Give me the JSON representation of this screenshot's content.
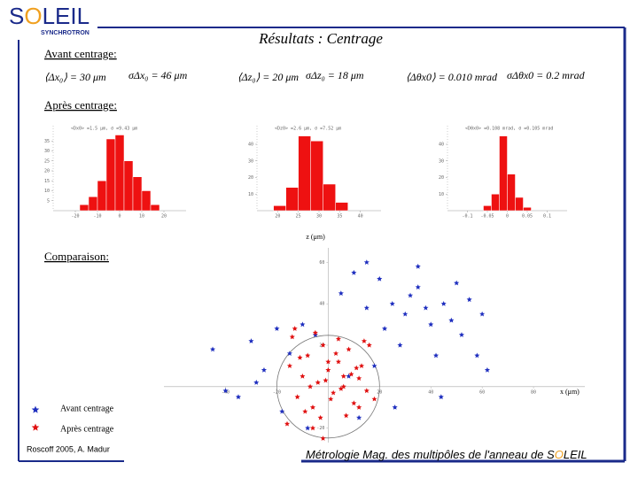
{
  "header": {
    "logo_s": "S",
    "logo_o": "O",
    "logo_rest": "LEIL",
    "logo_sub": "SYNCHROTRON",
    "title": "Résultats : Centrage"
  },
  "sections": {
    "before": "Avant centrage:",
    "after": "Après centrage:",
    "comparison": "Comparaison:"
  },
  "formulas": [
    "⟨Δx₀⟩ = 30 μm",
    "σΔx₀ = 46 μm",
    "⟨Δz₀⟩ = 20 μm",
    "σΔz₀ = 18 μm",
    "⟨Δθx0⟩ = 0.010 mrad",
    "σΔθx0 = 0.2 mrad"
  ],
  "histograms": [
    {
      "type": "histogram",
      "stats": "<Dx0> =1.5 μm, σ =9.43 μm",
      "bins": [
        -18,
        -14,
        -10,
        -6,
        -2,
        2,
        6,
        10,
        14,
        18
      ],
      "counts": [
        3,
        7,
        15,
        36,
        38,
        25,
        17,
        10,
        3
      ],
      "xlim": [
        -30,
        30
      ],
      "xticks": [
        -20,
        -10,
        0,
        10,
        20
      ],
      "ylim": [
        0,
        40
      ],
      "yticks": [
        5,
        10,
        15,
        20,
        25,
        30,
        35
      ]
    },
    {
      "type": "histogram",
      "stats": "<Dz0> =2.6 μm, σ =7.52 μm",
      "bins": [
        19,
        22,
        25,
        28,
        31,
        34,
        37
      ],
      "counts": [
        3,
        14,
        45,
        42,
        16,
        5
      ],
      "xlim": [
        15,
        45
      ],
      "xticks": [
        20,
        25,
        30,
        35,
        40
      ],
      "ylim": [
        0,
        48
      ],
      "yticks": [
        10,
        20,
        30,
        40
      ]
    },
    {
      "type": "histogram",
      "stats": "<Dθx0> =0.108 mrad, σ =0.105 mrad",
      "bins": [
        -0.06,
        -0.04,
        -0.02,
        0,
        0.02,
        0.04,
        0.06
      ],
      "counts": [
        3,
        10,
        45,
        22,
        8,
        2
      ],
      "xlim": [
        -0.15,
        0.15
      ],
      "xticks": [
        -0.1,
        -0.05,
        0,
        0.05,
        0.1
      ],
      "ylim": [
        0,
        48
      ],
      "yticks": [
        10,
        20,
        30,
        40
      ]
    }
  ],
  "scatter": {
    "type": "scatter",
    "xlabel": "x (μm)",
    "ylabel": "z (μm)",
    "xlim": [
      -64,
      100
    ],
    "ylim": [
      -27,
      67
    ],
    "xticks": [
      -40,
      -20,
      20,
      40,
      60,
      80
    ],
    "yticks": [
      -20,
      20,
      40,
      60
    ],
    "series": [
      {
        "name": "Avant centrage",
        "color": "#1f2fbf",
        "x": [
          -45,
          -40,
          -30,
          -25,
          -20,
          -15,
          -10,
          -5,
          5,
          10,
          15,
          20,
          25,
          30,
          35,
          40,
          45,
          50,
          55,
          60,
          -35,
          -8,
          12,
          28,
          42,
          52,
          18,
          32,
          48,
          8,
          22,
          38,
          -28,
          58,
          26,
          44,
          -18,
          15,
          35,
          62
        ],
        "y": [
          18,
          -2,
          22,
          8,
          28,
          16,
          30,
          25,
          45,
          55,
          38,
          52,
          40,
          35,
          48,
          30,
          40,
          50,
          42,
          35,
          -5,
          -20,
          -15,
          20,
          15,
          25,
          10,
          44,
          32,
          5,
          28,
          38,
          2,
          15,
          -10,
          -5,
          -12,
          60,
          58,
          8
        ]
      },
      {
        "name": "Après centrage",
        "color": "#e01010",
        "x": [
          -15,
          -12,
          -10,
          -8,
          -6,
          -4,
          -2,
          0,
          2,
          4,
          6,
          8,
          10,
          12,
          14,
          -14,
          -9,
          -3,
          3,
          9,
          15,
          -11,
          -5,
          1,
          7,
          13,
          -7,
          -1,
          5,
          11,
          -16,
          16,
          -13,
          -6,
          0,
          6,
          12,
          -2,
          4,
          18
        ],
        "y": [
          10,
          -5,
          5,
          15,
          -10,
          2,
          20,
          8,
          -3,
          12,
          0,
          18,
          -8,
          4,
          22,
          24,
          -12,
          -15,
          16,
          6,
          -2,
          14,
          26,
          -6,
          -14,
          10,
          0,
          3,
          -1,
          9,
          -18,
          20,
          28,
          -20,
          12,
          5,
          -10,
          -25,
          23,
          -6
        ]
      }
    ]
  },
  "footer": {
    "author": "Roscoff 2005,  A. Madur",
    "caption": "Métrologie Mag. des multipôles de l'anneau de S",
    "caption_o": "O",
    "caption_rest": "LEIL"
  }
}
